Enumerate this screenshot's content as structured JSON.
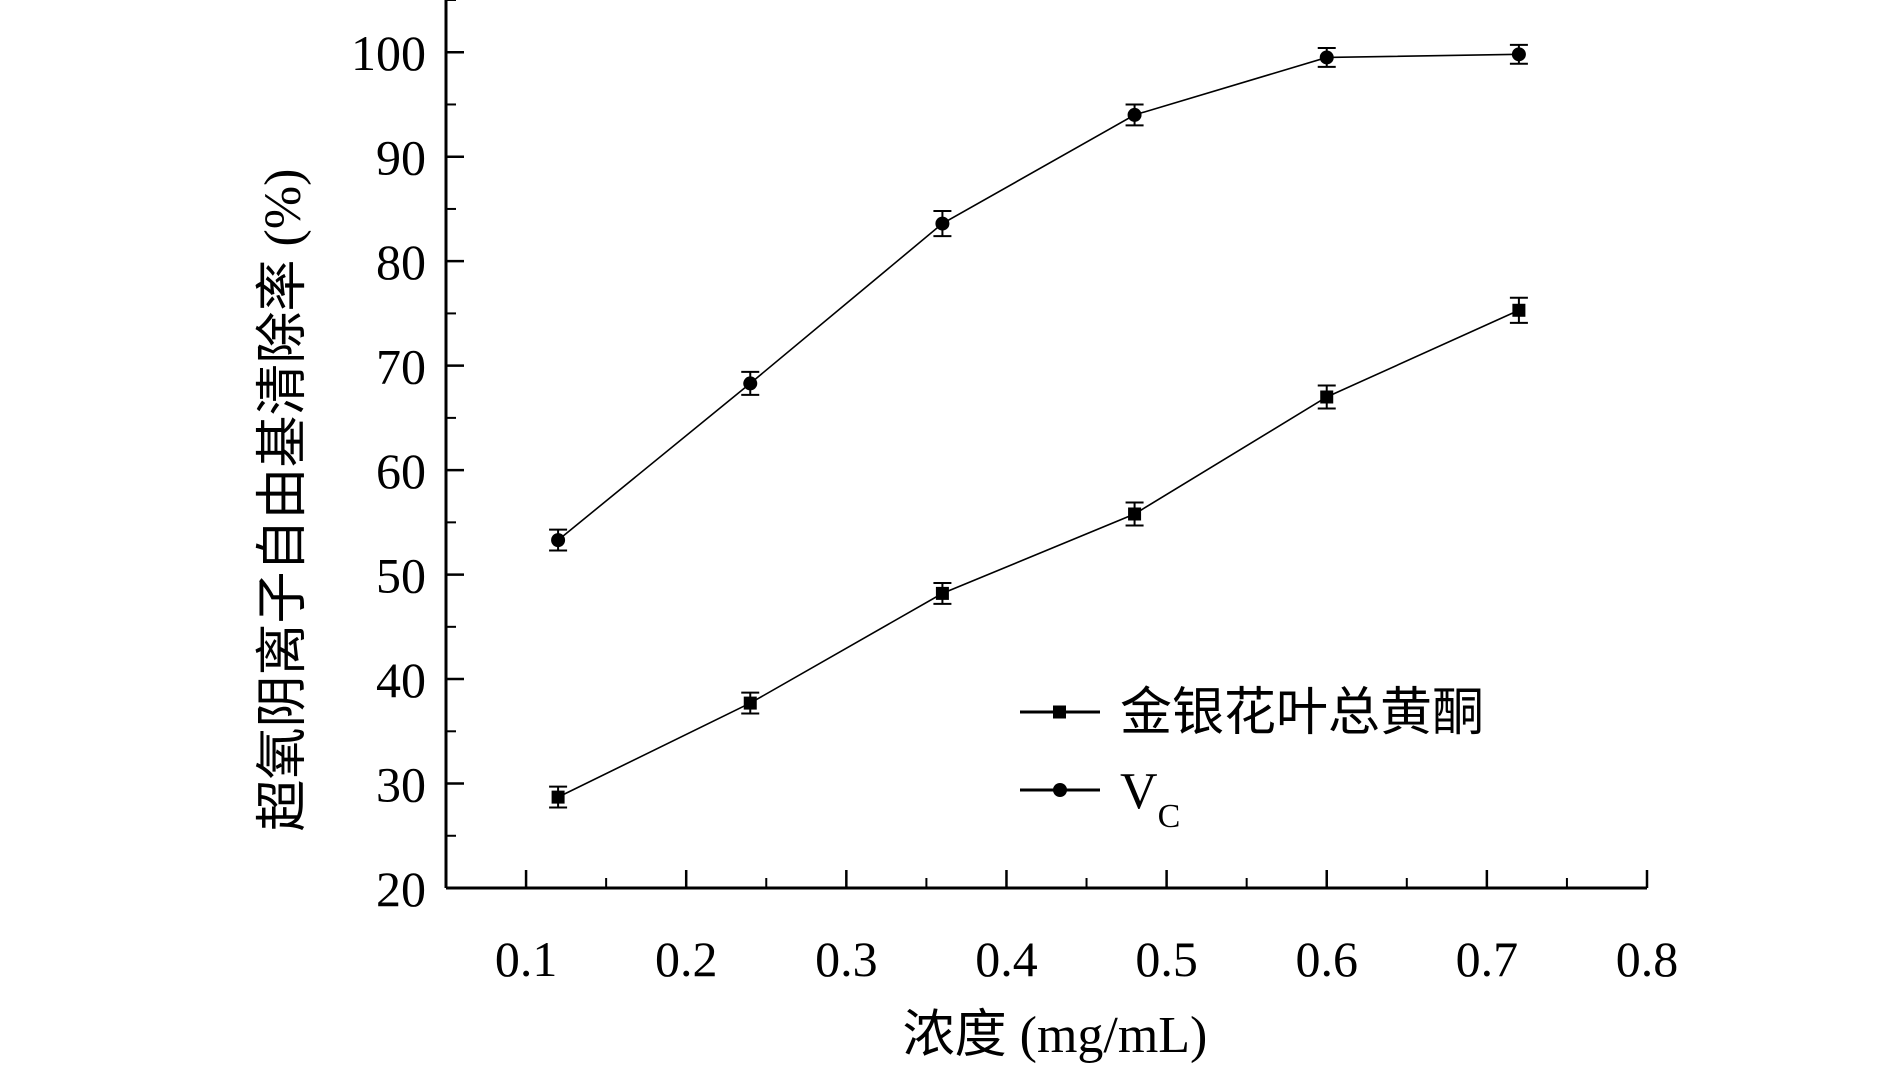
{
  "chart_data": {
    "type": "line",
    "xlabel": "浓度 (mg/mL)",
    "ylabel": "超氧阴离子自由基清除率 (%)",
    "xlim": [
      0.05,
      0.8
    ],
    "ylim": [
      20,
      105
    ],
    "xticks": [
      0.1,
      0.2,
      0.3,
      0.4,
      0.5,
      0.6,
      0.7,
      0.8
    ],
    "yticks": [
      20,
      30,
      40,
      50,
      60,
      70,
      80,
      90,
      100
    ],
    "grid": false,
    "legend_position": "bottom-right",
    "x": [
      0.12,
      0.24,
      0.36,
      0.48,
      0.6,
      0.72
    ],
    "series": [
      {
        "name": "金银花叶总黄酮",
        "marker": "square",
        "values": [
          28.7,
          37.7,
          48.2,
          55.8,
          67.0,
          75.3
        ],
        "errors": [
          1.0,
          1.0,
          1.0,
          1.1,
          1.1,
          1.2
        ]
      },
      {
        "name": "V",
        "name_subscript": "C",
        "marker": "circle",
        "values": [
          53.3,
          68.3,
          83.6,
          94.0,
          99.5,
          99.8
        ],
        "errors": [
          1.0,
          1.1,
          1.2,
          1.0,
          0.9,
          0.9
        ]
      }
    ]
  }
}
